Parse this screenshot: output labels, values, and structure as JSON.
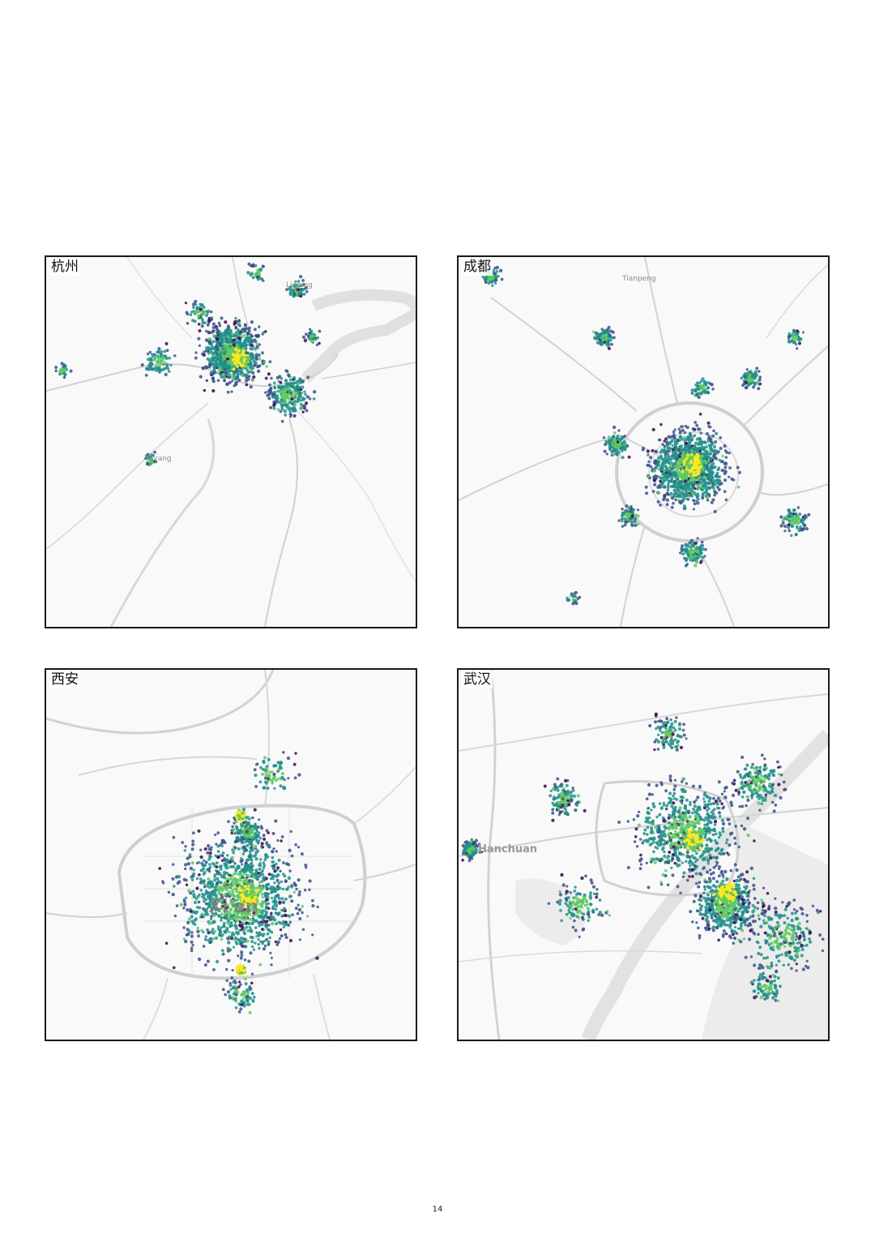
{
  "panels": [
    {
      "id": "hz",
      "city": "杭州",
      "labels": [
        "Linping",
        "Fuyang"
      ],
      "big_label": ""
    },
    {
      "id": "cd",
      "city": "成都",
      "labels": [
        "Tianpeng"
      ],
      "big_label": ""
    },
    {
      "id": "xa",
      "city": "西安",
      "labels": [],
      "big_label": "Xi'an"
    },
    {
      "id": "wh",
      "city": "武汉",
      "labels": [
        "Hanchuan"
      ],
      "big_label": ""
    }
  ],
  "colors": {
    "viridis": [
      "#440154",
      "#3b528b",
      "#21918c",
      "#5ec962",
      "#fde725"
    ],
    "road": "#d0d0d0",
    "major_road": "#bdbdbd",
    "water": "#e3e3e3",
    "border": "#1a1a1a"
  },
  "page_number": "14"
}
